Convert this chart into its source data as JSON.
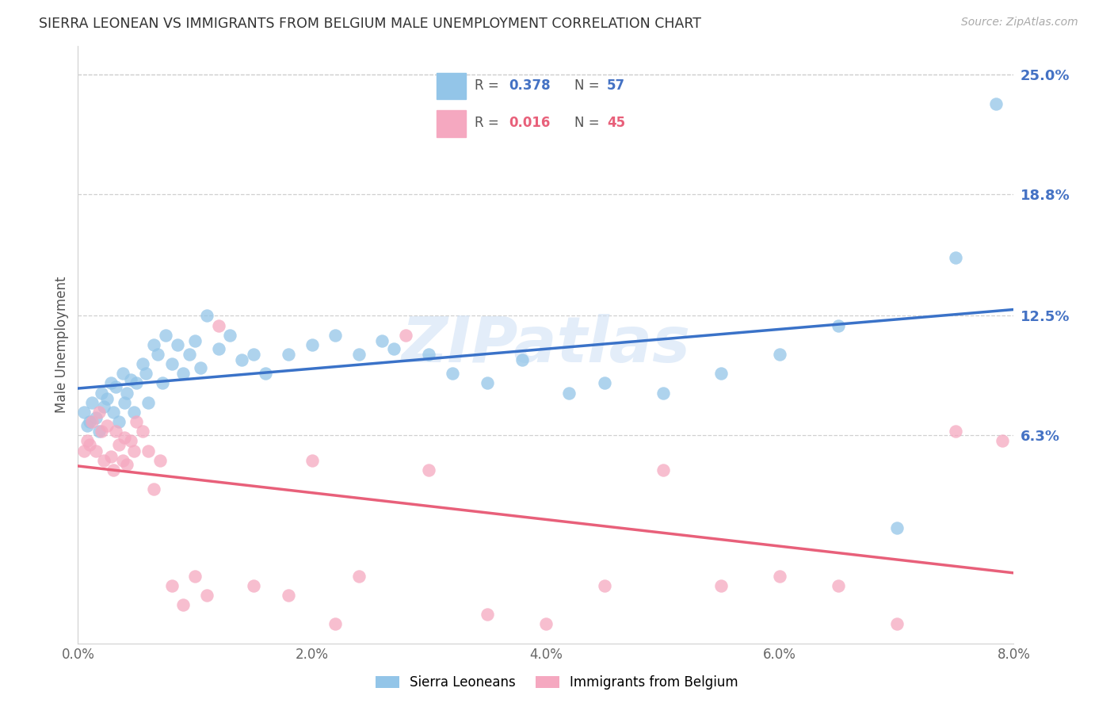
{
  "title": "SIERRA LEONEAN VS IMMIGRANTS FROM BELGIUM MALE UNEMPLOYMENT CORRELATION CHART",
  "source": "Source: ZipAtlas.com",
  "ylabel": "Male Unemployment",
  "ytick_labels": [
    "6.3%",
    "12.5%",
    "18.8%",
    "25.0%"
  ],
  "ytick_values": [
    6.3,
    12.5,
    18.8,
    25.0
  ],
  "xmin": 0.0,
  "xmax": 8.0,
  "ymin": -4.5,
  "ymax": 26.5,
  "R1": "0.378",
  "N1": "57",
  "R2": "0.016",
  "N2": "45",
  "color_blue_scatter": "#93c5e8",
  "color_pink_scatter": "#f5a8c0",
  "color_blue_line": "#3a72c8",
  "color_pink_line": "#e8607a",
  "color_blue_text": "#4472c4",
  "color_pink_text": "#e8607a",
  "color_grid": "#d0d0d0",
  "watermark_color": "#ccdff5",
  "sierra_x": [
    0.05,
    0.08,
    0.1,
    0.12,
    0.15,
    0.18,
    0.2,
    0.22,
    0.25,
    0.28,
    0.3,
    0.32,
    0.35,
    0.38,
    0.4,
    0.42,
    0.45,
    0.48,
    0.5,
    0.55,
    0.58,
    0.6,
    0.65,
    0.68,
    0.72,
    0.75,
    0.8,
    0.85,
    0.9,
    0.95,
    1.0,
    1.05,
    1.1,
    1.2,
    1.3,
    1.4,
    1.5,
    1.6,
    1.8,
    2.0,
    2.2,
    2.4,
    2.6,
    2.7,
    3.0,
    3.2,
    3.5,
    3.8,
    4.2,
    4.5,
    5.0,
    5.5,
    6.0,
    6.5,
    7.0,
    7.5,
    7.85
  ],
  "sierra_y": [
    7.5,
    6.8,
    7.0,
    8.0,
    7.2,
    6.5,
    8.5,
    7.8,
    8.2,
    9.0,
    7.5,
    8.8,
    7.0,
    9.5,
    8.0,
    8.5,
    9.2,
    7.5,
    9.0,
    10.0,
    9.5,
    8.0,
    11.0,
    10.5,
    9.0,
    11.5,
    10.0,
    11.0,
    9.5,
    10.5,
    11.2,
    9.8,
    12.5,
    10.8,
    11.5,
    10.2,
    10.5,
    9.5,
    10.5,
    11.0,
    11.5,
    10.5,
    11.2,
    10.8,
    10.5,
    9.5,
    9.0,
    10.2,
    8.5,
    9.0,
    8.5,
    9.5,
    10.5,
    12.0,
    1.5,
    15.5,
    23.5
  ],
  "belgium_x": [
    0.05,
    0.08,
    0.1,
    0.12,
    0.15,
    0.18,
    0.2,
    0.22,
    0.25,
    0.28,
    0.3,
    0.32,
    0.35,
    0.38,
    0.4,
    0.42,
    0.45,
    0.48,
    0.5,
    0.55,
    0.6,
    0.65,
    0.7,
    0.8,
    0.9,
    1.0,
    1.1,
    1.2,
    1.5,
    1.8,
    2.0,
    2.2,
    2.4,
    2.8,
    3.0,
    3.5,
    4.0,
    4.5,
    5.0,
    5.5,
    6.0,
    6.5,
    7.0,
    7.5,
    7.9
  ],
  "belgium_y": [
    5.5,
    6.0,
    5.8,
    7.0,
    5.5,
    7.5,
    6.5,
    5.0,
    6.8,
    5.2,
    4.5,
    6.5,
    5.8,
    5.0,
    6.2,
    4.8,
    6.0,
    5.5,
    7.0,
    6.5,
    5.5,
    3.5,
    5.0,
    -1.5,
    -2.5,
    -1.0,
    -2.0,
    12.0,
    -1.5,
    -2.0,
    5.0,
    -3.5,
    -1.0,
    11.5,
    4.5,
    -3.0,
    -3.5,
    -1.5,
    4.5,
    -1.5,
    -1.0,
    -1.5,
    -3.5,
    6.5,
    6.0
  ]
}
